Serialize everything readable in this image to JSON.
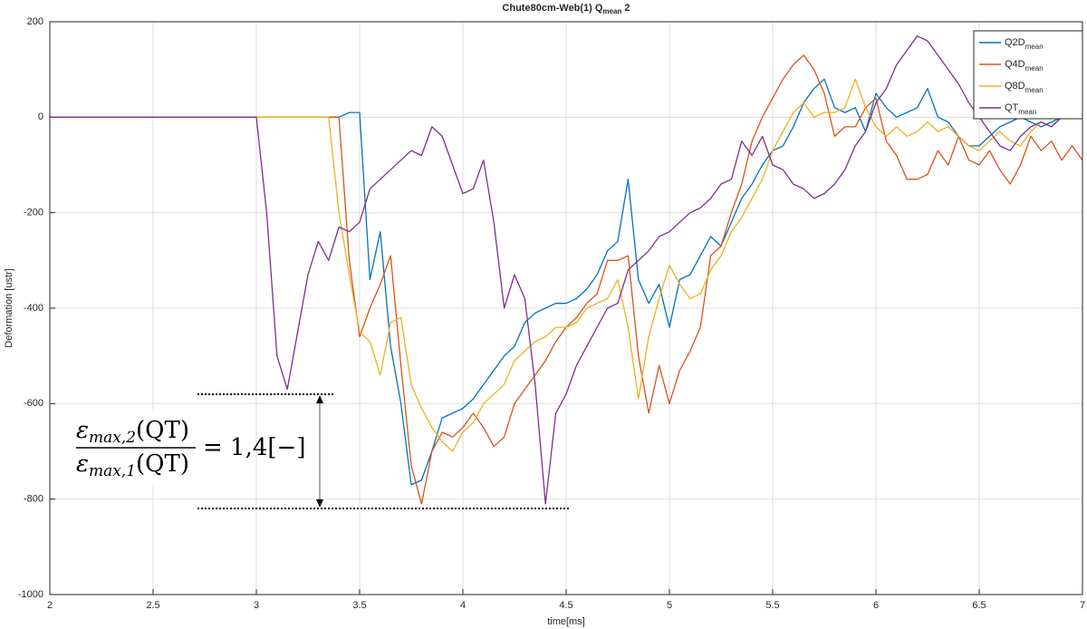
{
  "chart_data": {
    "type": "line",
    "title": "Chute80cm-Web(1) Q",
    "title_subscript": "mean",
    "title_suffix": " 2",
    "x_label": "time[ms]",
    "y_label": "Deformation [ustr]",
    "xlim": [
      2,
      7
    ],
    "xticks": [
      2,
      2.5,
      3,
      3.5,
      4,
      4.5,
      5,
      5.5,
      6,
      6.5,
      7
    ],
    "ylim": [
      -1000,
      200
    ],
    "yticks": [
      -1000,
      -800,
      -600,
      -400,
      -200,
      0,
      200
    ],
    "grid": true,
    "legend": "upper right",
    "legend_subscript": "mean",
    "x": [
      2,
      2.5,
      2.9,
      3,
      3.05,
      3.1,
      3.15,
      3.2,
      3.25,
      3.3,
      3.35,
      3.4,
      3.45,
      3.5,
      3.55,
      3.6,
      3.65,
      3.7,
      3.75,
      3.8,
      3.85,
      3.9,
      3.95,
      4,
      4.05,
      4.1,
      4.15,
      4.2,
      4.25,
      4.3,
      4.35,
      4.4,
      4.45,
      4.5,
      4.55,
      4.6,
      4.65,
      4.7,
      4.75,
      4.8,
      4.85,
      4.9,
      4.95,
      5,
      5.05,
      5.1,
      5.15,
      5.2,
      5.25,
      5.3,
      5.35,
      5.4,
      5.45,
      5.5,
      5.55,
      5.6,
      5.65,
      5.7,
      5.75,
      5.8,
      5.85,
      5.9,
      5.95,
      6,
      6.05,
      6.1,
      6.15,
      6.2,
      6.25,
      6.3,
      6.35,
      6.4,
      6.45,
      6.5,
      6.55,
      6.6,
      6.65,
      6.7,
      6.75,
      6.8,
      6.85,
      6.9,
      6.95,
      7
    ],
    "series": [
      {
        "name": "Q2D",
        "color": "#0072BD",
        "values": [
          0,
          0,
          0,
          0,
          0,
          0,
          0,
          0,
          0,
          0,
          0,
          0,
          10,
          10,
          -340,
          -240,
          -480,
          -600,
          -770,
          -760,
          -700,
          -630,
          -620,
          -610,
          -590,
          -560,
          -530,
          -500,
          -480,
          -430,
          -410,
          -400,
          -390,
          -390,
          -380,
          -360,
          -330,
          -280,
          -260,
          -130,
          -340,
          -390,
          -350,
          -440,
          -340,
          -330,
          -290,
          -250,
          -270,
          -220,
          -170,
          -140,
          -100,
          -70,
          -60,
          -20,
          30,
          60,
          80,
          20,
          10,
          20,
          -30,
          50,
          20,
          0,
          10,
          20,
          60,
          0,
          -10,
          -40,
          -60,
          -60,
          -40,
          -20,
          -10,
          0,
          -10,
          -20,
          -10,
          0,
          10,
          20
        ]
      },
      {
        "name": "Q4D",
        "color": "#D95319",
        "values": [
          0,
          0,
          0,
          0,
          0,
          0,
          0,
          0,
          0,
          0,
          0,
          0,
          -300,
          -460,
          -400,
          -350,
          -290,
          -520,
          -730,
          -810,
          -700,
          -660,
          -670,
          -650,
          -620,
          -650,
          -690,
          -670,
          -600,
          -570,
          -540,
          -510,
          -470,
          -440,
          -420,
          -390,
          -370,
          -300,
          -300,
          -290,
          -500,
          -620,
          -520,
          -600,
          -530,
          -490,
          -440,
          -290,
          -270,
          -200,
          -140,
          -50,
          0,
          40,
          80,
          110,
          130,
          100,
          50,
          -40,
          -20,
          -20,
          20,
          40,
          -50,
          -80,
          -130,
          -130,
          -120,
          -70,
          -100,
          -40,
          -90,
          -100,
          -70,
          -110,
          -140,
          -100,
          -40,
          -70,
          -50,
          -90,
          -60,
          -90
        ]
      },
      {
        "name": "Q8D",
        "color": "#EDB120",
        "values": [
          0,
          0,
          0,
          0,
          0,
          0,
          0,
          0,
          0,
          0,
          0,
          -200,
          -330,
          -450,
          -470,
          -540,
          -430,
          -420,
          -560,
          -610,
          -650,
          -680,
          -700,
          -660,
          -640,
          -600,
          -580,
          -560,
          -510,
          -490,
          -470,
          -460,
          -440,
          -440,
          -430,
          -400,
          -390,
          -380,
          -340,
          -440,
          -590,
          -460,
          -380,
          -310,
          -350,
          -380,
          -370,
          -320,
          -290,
          -240,
          -210,
          -170,
          -130,
          -70,
          -30,
          10,
          30,
          0,
          10,
          10,
          20,
          80,
          20,
          -20,
          -40,
          -20,
          -40,
          -30,
          -10,
          -30,
          -20,
          -40,
          -60,
          -70,
          -50,
          -30,
          -50,
          -60,
          -30,
          -10,
          -20,
          0,
          20,
          40
        ]
      },
      {
        "name": "QT",
        "color": "#7E2F8E",
        "values": [
          0,
          0,
          0,
          0,
          -200,
          -500,
          -570,
          -450,
          -330,
          -260,
          -300,
          -230,
          -240,
          -220,
          -150,
          -130,
          -110,
          -90,
          -70,
          -80,
          -20,
          -40,
          -100,
          -160,
          -150,
          -90,
          -220,
          -400,
          -330,
          -380,
          -560,
          -810,
          -620,
          -580,
          -520,
          -480,
          -440,
          -400,
          -390,
          -320,
          -300,
          -280,
          -250,
          -240,
          -220,
          -200,
          -190,
          -170,
          -140,
          -130,
          -50,
          -80,
          -40,
          -100,
          -110,
          -140,
          -150,
          -170,
          -160,
          -140,
          -110,
          -60,
          -30,
          30,
          60,
          110,
          140,
          170,
          160,
          130,
          100,
          70,
          30,
          0,
          -30,
          -60,
          -70,
          -40,
          -20,
          -10,
          -20,
          0,
          10,
          10
        ]
      }
    ],
    "annotation": {
      "symbol": "ε",
      "numerator_subscript": "max,2",
      "numerator_argument": "(QT)",
      "denominator_subscript": "max,1",
      "denominator_argument": "(QT)",
      "result": "= 1,4[−]"
    }
  }
}
